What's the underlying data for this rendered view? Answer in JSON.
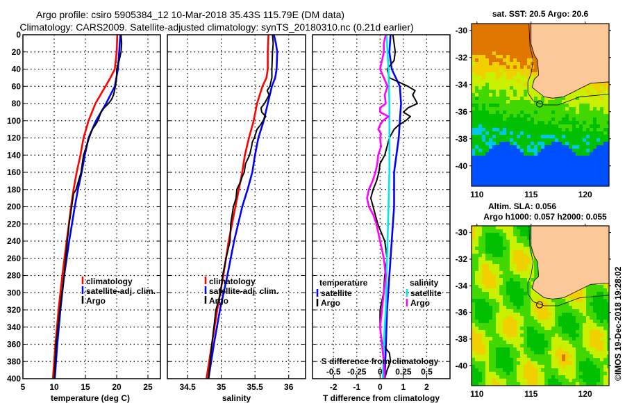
{
  "title": {
    "line1": "Argo profile: csiro 5905384_12 10-Mar-2018 35.43S 115.79E (DM data)",
    "line2": "Climatology: CARS2009. Satellite-adjusted climatology: synTS_20180310.nc (0.21d earlier)"
  },
  "colors": {
    "climatology": "#ff0000",
    "satellite": "#0000ff",
    "argo": "#000000",
    "sal_satellite": "#00e8e8",
    "sal_argo": "#ff00ff",
    "land": "#fcc898"
  },
  "chart_data": [
    {
      "type": "line",
      "name": "temperature-profile",
      "xlabel": "temperature (deg C)",
      "ylabel": "",
      "xlim": [
        5,
        27
      ],
      "ylim": [
        0,
        400
      ],
      "y_reversed": true,
      "xticks": [
        5,
        10,
        15,
        20,
        25
      ],
      "yticks": [
        0,
        20,
        40,
        60,
        80,
        100,
        120,
        140,
        160,
        180,
        200,
        220,
        240,
        260,
        280,
        300,
        320,
        340,
        360,
        380,
        400
      ],
      "grid": true,
      "legend": {
        "position": "middle-right",
        "entries": [
          "climatology",
          "satellite-adj. clim.",
          "Argo"
        ]
      },
      "series": [
        {
          "name": "climatology",
          "depth": [
            0,
            20,
            40,
            50,
            60,
            80,
            100,
            120,
            140,
            160,
            180,
            200,
            240,
            280,
            320,
            360,
            400
          ],
          "values": [
            20.1,
            20.0,
            19.7,
            19.0,
            18.2,
            16.6,
            15.5,
            14.7,
            14.2,
            13.6,
            13.1,
            12.7,
            12.0,
            11.3,
            10.7,
            10.2,
            9.8
          ]
        },
        {
          "name": "satellite-adj. clim.",
          "depth": [
            0,
            20,
            40,
            60,
            80,
            100,
            120,
            140,
            160,
            180,
            200,
            240,
            280,
            320,
            360,
            400
          ],
          "values": [
            20.6,
            20.4,
            20.2,
            19.7,
            18.3,
            16.7,
            15.5,
            14.9,
            14.4,
            13.8,
            13.3,
            12.4,
            11.6,
            11.0,
            10.5,
            10.1
          ]
        },
        {
          "name": "Argo",
          "depth": [
            0,
            10,
            20,
            30,
            40,
            50,
            60,
            70,
            75,
            80,
            85,
            90,
            100,
            105,
            110,
            120,
            140,
            160,
            180,
            185,
            190,
            200,
            220,
            240,
            280,
            320,
            360,
            400
          ],
          "values": [
            20.7,
            20.8,
            20.7,
            20.4,
            20.0,
            20.0,
            19.8,
            19.5,
            19.2,
            18.7,
            18.0,
            17.5,
            17.0,
            16.6,
            16.1,
            15.6,
            14.7,
            14.3,
            13.5,
            13.1,
            13.0,
            12.8,
            12.4,
            12.1,
            11.6,
            10.9,
            10.3,
            10.0
          ]
        }
      ]
    },
    {
      "type": "line",
      "name": "salinity-profile",
      "xlabel": "salinity",
      "xlim": [
        34.2,
        36.25
      ],
      "ylim": [
        0,
        400
      ],
      "y_reversed": true,
      "xticks": [
        34.5,
        35,
        35.5,
        36
      ],
      "yticks": [
        0,
        20,
        40,
        60,
        80,
        100,
        120,
        140,
        160,
        180,
        200,
        220,
        240,
        260,
        280,
        300,
        320,
        340,
        360,
        380,
        400
      ],
      "grid": true,
      "legend": {
        "position": "middle-right",
        "entries": [
          "climatology",
          "satellite-adj. clim.",
          "Argo"
        ]
      },
      "series": [
        {
          "name": "climatology",
          "depth": [
            0,
            20,
            40,
            50,
            60,
            80,
            100,
            120,
            140,
            160,
            180,
            200,
            240,
            280,
            320,
            360,
            400
          ],
          "values": [
            35.7,
            35.69,
            35.69,
            35.67,
            35.61,
            35.53,
            35.48,
            35.41,
            35.35,
            35.31,
            35.26,
            35.21,
            35.11,
            35.03,
            34.94,
            34.86,
            34.78
          ]
        },
        {
          "name": "satellite-adj. clim.",
          "depth": [
            0,
            10,
            20,
            40,
            50,
            60,
            80,
            100,
            120,
            140,
            160,
            180,
            200,
            240,
            280,
            320,
            360,
            400
          ],
          "values": [
            35.78,
            35.81,
            35.83,
            35.82,
            35.8,
            35.75,
            35.69,
            35.63,
            35.55,
            35.5,
            35.46,
            35.39,
            35.31,
            35.19,
            35.09,
            34.98,
            34.89,
            34.81
          ]
        },
        {
          "name": "Argo",
          "depth": [
            0,
            10,
            20,
            40,
            50,
            60,
            65,
            70,
            80,
            85,
            90,
            95,
            100,
            105,
            110,
            115,
            120,
            125,
            130,
            140,
            150,
            160,
            165,
            170,
            180,
            190,
            200,
            220,
            240,
            260,
            280,
            300,
            320,
            360,
            400
          ],
          "values": [
            35.76,
            35.77,
            35.76,
            35.75,
            35.75,
            35.72,
            35.68,
            35.71,
            35.64,
            35.59,
            35.6,
            35.66,
            35.62,
            35.58,
            35.53,
            35.51,
            35.49,
            35.46,
            35.45,
            35.42,
            35.36,
            35.34,
            35.31,
            35.29,
            35.23,
            35.22,
            35.18,
            35.14,
            35.13,
            35.07,
            35.02,
            34.99,
            34.92,
            34.86,
            34.81
          ]
        }
      ]
    },
    {
      "type": "line",
      "name": "difference-profile",
      "xlabel": "T difference from climatology",
      "xlabel_top": "S difference from climatology",
      "xlim": [
        -2.9,
        3.0
      ],
      "xlim_s": [
        -0.725,
        0.75
      ],
      "ylim": [
        0,
        400
      ],
      "y_reversed": true,
      "xticks": [
        -2,
        -1,
        0,
        1,
        2
      ],
      "xticks_s": [
        -0.5,
        -0.25,
        0,
        0.25,
        0.5
      ],
      "yticks": [
        0,
        20,
        40,
        60,
        80,
        100,
        120,
        140,
        160,
        180,
        200,
        220,
        240,
        260,
        280,
        300,
        320,
        340,
        360,
        380,
        400
      ],
      "grid": true,
      "legend": {
        "position": "middle",
        "temperature_header": "temperature",
        "salinity_header": "salinity",
        "entries_t": [
          "satellite",
          "Argo"
        ],
        "entries_s": [
          "satellite",
          "Argo"
        ]
      },
      "series": [
        {
          "name": "T satellite",
          "axis": "T",
          "depth": [
            0,
            20,
            40,
            60,
            80,
            100,
            120,
            140,
            160,
            180,
            200,
            240,
            280,
            320,
            360,
            400
          ],
          "values": [
            0.45,
            0.4,
            0.5,
            0.85,
            0.9,
            0.85,
            0.8,
            0.7,
            0.6,
            0.6,
            0.6,
            0.5,
            0.4,
            0.3,
            0.25,
            0.2
          ]
        },
        {
          "name": "T Argo",
          "axis": "T",
          "depth": [
            0,
            10,
            20,
            30,
            40,
            45,
            50,
            55,
            60,
            65,
            70,
            75,
            80,
            85,
            90,
            95,
            100,
            105,
            110,
            115,
            120,
            130,
            140,
            150,
            160,
            170,
            180,
            190,
            200,
            220,
            240,
            260,
            280,
            300,
            320,
            340,
            360,
            370,
            380,
            390,
            400
          ],
          "values": [
            0.55,
            0.6,
            0.65,
            0.6,
            0.3,
            0.35,
            0.4,
            0.8,
            1.2,
            1.5,
            1.4,
            1.5,
            1.6,
            1.2,
            1.0,
            1.3,
            1.1,
            0.8,
            0.6,
            0.5,
            0.4,
            0.3,
            0.2,
            0.0,
            -0.05,
            -0.15,
            -0.3,
            -0.4,
            -0.3,
            -0.1,
            0.2,
            0.3,
            0.2,
            0.15,
            0.0,
            0.0,
            0.1,
            0.4,
            0.45,
            0.3,
            0.2
          ]
        },
        {
          "name": "S satellite",
          "axis": "S",
          "depth": [
            0,
            40,
            80,
            120,
            160,
            200,
            240,
            280,
            320,
            360,
            400
          ],
          "values": [
            0.07,
            0.09,
            0.1,
            0.1,
            0.1,
            0.09,
            0.08,
            0.07,
            0.06,
            0.04,
            0.03
          ]
        },
        {
          "name": "S Argo",
          "axis": "S",
          "depth": [
            0,
            10,
            20,
            30,
            40,
            50,
            60,
            70,
            80,
            85,
            90,
            95,
            100,
            105,
            110,
            115,
            120,
            130,
            140,
            150,
            160,
            170,
            180,
            190,
            200,
            210,
            220,
            240,
            260,
            280,
            300,
            320,
            340,
            360,
            380,
            400
          ],
          "values": [
            0.06,
            0.04,
            0.04,
            0.02,
            0.0,
            0.04,
            0.08,
            0.05,
            0.06,
            0.0,
            0.0,
            0.09,
            0.03,
            0.0,
            -0.02,
            0.01,
            0.0,
            0.01,
            -0.02,
            -0.03,
            -0.05,
            -0.08,
            -0.12,
            -0.14,
            -0.12,
            -0.07,
            -0.04,
            0.0,
            0.04,
            0.06,
            0.04,
            0.02,
            0.0,
            0.02,
            0.04,
            0.05
          ]
        }
      ]
    },
    {
      "type": "heatmap",
      "name": "sst-map",
      "title": "sat. SST: 20.5 Argo: 20.6",
      "xlim": [
        109.5,
        122.2
      ],
      "ylim": [
        -41.5,
        -29.5
      ],
      "xticks": [
        110,
        115,
        120
      ],
      "yticks": [
        -30,
        -32,
        -34,
        -36,
        -38,
        -40
      ],
      "marker": {
        "lon": 115.79,
        "lat": -35.43
      }
    },
    {
      "type": "heatmap",
      "name": "sla-map",
      "title_line1": "Altim. SLA: 0.056",
      "title_line2": "Argo h1000: 0.057 h2000: 0.055",
      "xlim": [
        109.5,
        122.2
      ],
      "ylim": [
        -41.5,
        -29.5
      ],
      "xticks": [
        110,
        115,
        120
      ],
      "yticks": [
        -30,
        -32,
        -34,
        -36,
        -38,
        -40
      ],
      "marker": {
        "lon": 115.79,
        "lat": -35.43
      }
    }
  ],
  "credit": "©IMOS 19-Dec-2018 19:28:02"
}
